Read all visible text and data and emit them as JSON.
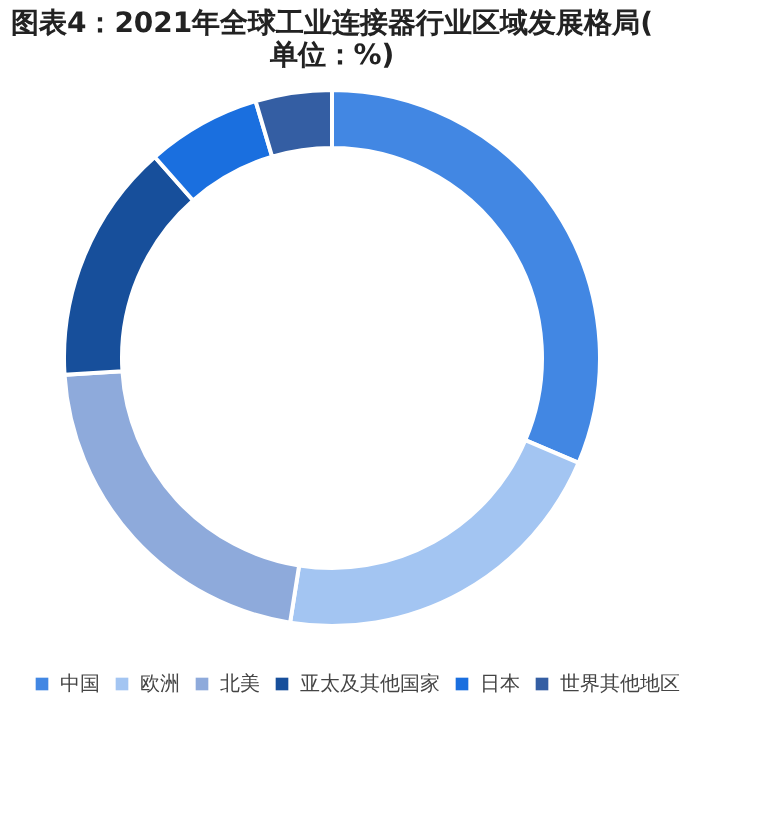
{
  "chart_data": {
    "type": "donut",
    "title": "图表4：2021年全球工业连接器行业区域发展格局(单位：%)",
    "categories": [
      "中国",
      "欧洲",
      "北美",
      "亚太及其他国家",
      "日本",
      "世界其他地区"
    ],
    "values": [
      31.4,
      21.1,
      21.5,
      14.5,
      6.9,
      4.6
    ],
    "colors": [
      "#4287e3",
      "#a3c5f2",
      "#8eaadb",
      "#174f9b",
      "#1a6fdf",
      "#345ea3"
    ],
    "legend": "bottom"
  }
}
